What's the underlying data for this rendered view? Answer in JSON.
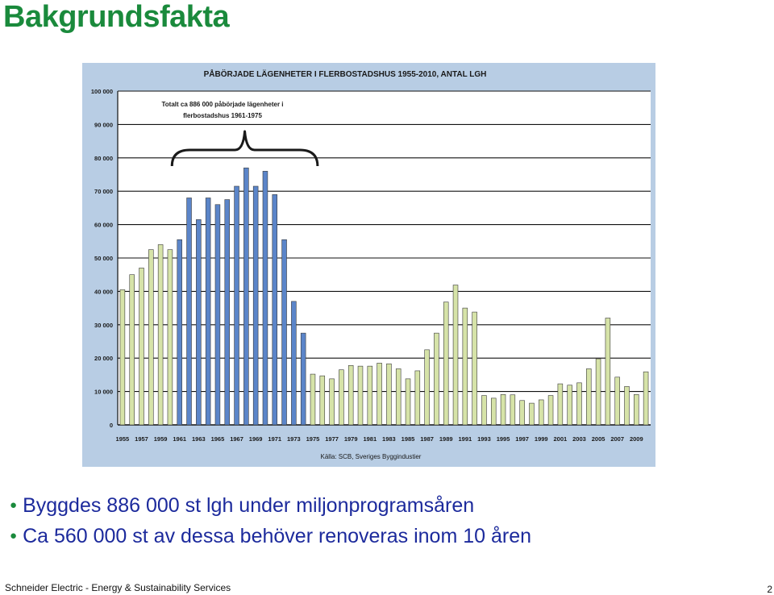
{
  "slide": {
    "title": "Bakgrundsfakta",
    "bullets": [
      "Byggdes 886 000 st lgh under miljonprogramsåren",
      "Ca 560 000 st av dessa behöver renoveras inom 10 åren"
    ],
    "footer": "Schneider Electric - Energy & Sustainability Services",
    "page_number": "2"
  },
  "colors": {
    "title": "#1a8a3c",
    "bullet_text": "#1c2a9c",
    "bullet_dot": "#1a8a3c",
    "chart_background": "#b8cde4",
    "plot_background": "#ffffff",
    "gridline": "#111111",
    "bar_green": "#d6e3a8",
    "bar_blue": "#5b85c9",
    "bar_edge": "#3a3a3a"
  },
  "chart_data": {
    "type": "bar",
    "title": "PÅBÖRJADE LÄGENHETER  I FLERBOSTADSHUS 1955-2010, ANTAL LGH",
    "source": "Källa: SCB, Sveriges Byggindustier",
    "annotation": {
      "lines": [
        "Totalt ca 886 000 påbörjade lägenheter i",
        "flerbostadshus 1961-1975"
      ],
      "start": "1961",
      "end": "1975"
    },
    "grid": true,
    "legend": "none",
    "ylim": [
      0,
      100000
    ],
    "y_ticks": [
      "0",
      "10 000",
      "20 000",
      "30 000",
      "40 000",
      "50 000",
      "60 000",
      "70 000",
      "80 000",
      "90 000",
      "100 000"
    ],
    "x_tick_labels": [
      "1955",
      "1957",
      "1959",
      "1961",
      "1963",
      "1965",
      "1967",
      "1969",
      "1971",
      "1973",
      "1975",
      "1977",
      "1979",
      "1981",
      "1983",
      "1985",
      "1987",
      "1989",
      "1991",
      "1993",
      "1995",
      "1997",
      "1999",
      "2001",
      "2003",
      "2005",
      "2007",
      "2009"
    ],
    "highlight_range": [
      "1961",
      "1974"
    ],
    "categories": [
      "1955",
      "1956",
      "1957",
      "1958",
      "1959",
      "1960",
      "1961",
      "1962",
      "1963",
      "1964",
      "1965",
      "1966",
      "1967",
      "1968",
      "1969",
      "1970",
      "1971",
      "1972",
      "1973",
      "1974",
      "1975",
      "1976",
      "1977",
      "1978",
      "1979",
      "1980",
      "1981",
      "1982",
      "1983",
      "1984",
      "1985",
      "1986",
      "1987",
      "1988",
      "1989",
      "1990",
      "1991",
      "1992",
      "1993",
      "1994",
      "1995",
      "1996",
      "1997",
      "1998",
      "1999",
      "2000",
      "2001",
      "2002",
      "2003",
      "2004",
      "2005",
      "2006",
      "2007",
      "2008",
      "2009",
      "2010"
    ],
    "values": [
      40500,
      45000,
      47000,
      52500,
      54000,
      52500,
      55500,
      68000,
      61500,
      68000,
      66000,
      67500,
      71500,
      77000,
      71500,
      76000,
      69000,
      55500,
      37000,
      27500,
      15200,
      14700,
      13800,
      16500,
      17800,
      17600,
      17600,
      18500,
      18300,
      16800,
      13800,
      16200,
      22500,
      27500,
      36800,
      41900,
      35000,
      33800,
      8800,
      8000,
      9100,
      9000,
      7300,
      6500,
      7500,
      8800,
      12300,
      11900,
      12600,
      16800,
      19800,
      32000,
      14300,
      11500,
      9100,
      15900
    ]
  }
}
